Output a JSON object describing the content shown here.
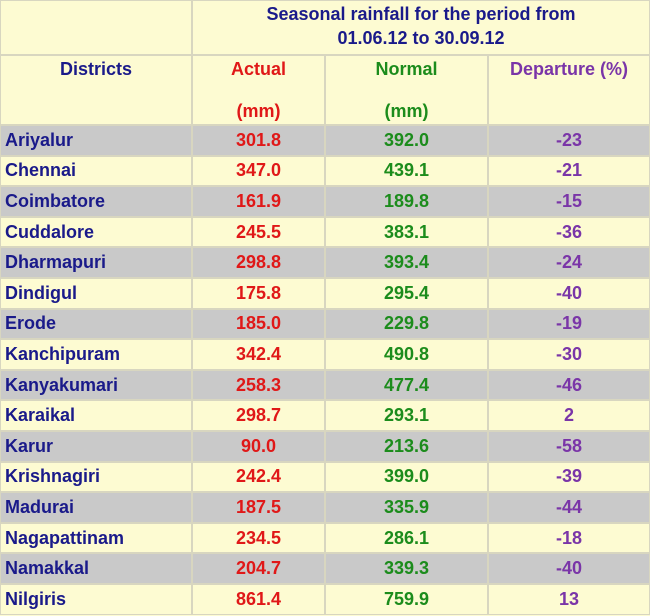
{
  "title": [
    "Seasonal rainfall for the period from",
    "01.06.12  to  30.09.12"
  ],
  "table": {
    "header": [
      [
        "Districts"
      ],
      [
        "Actual",
        "(mm)"
      ],
      [
        "Normal",
        "(mm)"
      ],
      [
        "Departure (%)"
      ]
    ],
    "rows": [
      [
        "Ariyalur",
        "301.8",
        "392.0",
        "-23"
      ],
      [
        "Chennai",
        "347.0",
        "439.1",
        "-21"
      ],
      [
        "Coimbatore",
        "161.9",
        "189.8",
        "-15"
      ],
      [
        "Cuddalore",
        "245.5",
        "383.1",
        "-36"
      ],
      [
        "Dharmapuri",
        "298.8",
        "393.4",
        "-24"
      ],
      [
        "Dindigul",
        "175.8",
        "295.4",
        "-40"
      ],
      [
        "Erode",
        "185.0",
        "229.8",
        "-19"
      ],
      [
        "Kanchipuram",
        "342.4",
        "490.8",
        "-30"
      ],
      [
        "Kanyakumari",
        "258.3",
        "477.4",
        "-46"
      ],
      [
        "Karaikal",
        "298.7",
        "293.1",
        "2"
      ],
      [
        "Karur",
        "90.0",
        "213.6",
        "-58"
      ],
      [
        "Krishnagiri",
        "242.4",
        "399.0",
        "-39"
      ],
      [
        "Madurai",
        "187.5",
        "335.9",
        "-44"
      ],
      [
        "Nagapattinam",
        "234.5",
        "286.1",
        "-18"
      ],
      [
        "Namakkal",
        "204.7",
        "339.3",
        "-40"
      ],
      [
        "Nilgiris",
        "861.4",
        "759.9",
        "13"
      ]
    ]
  }
}
